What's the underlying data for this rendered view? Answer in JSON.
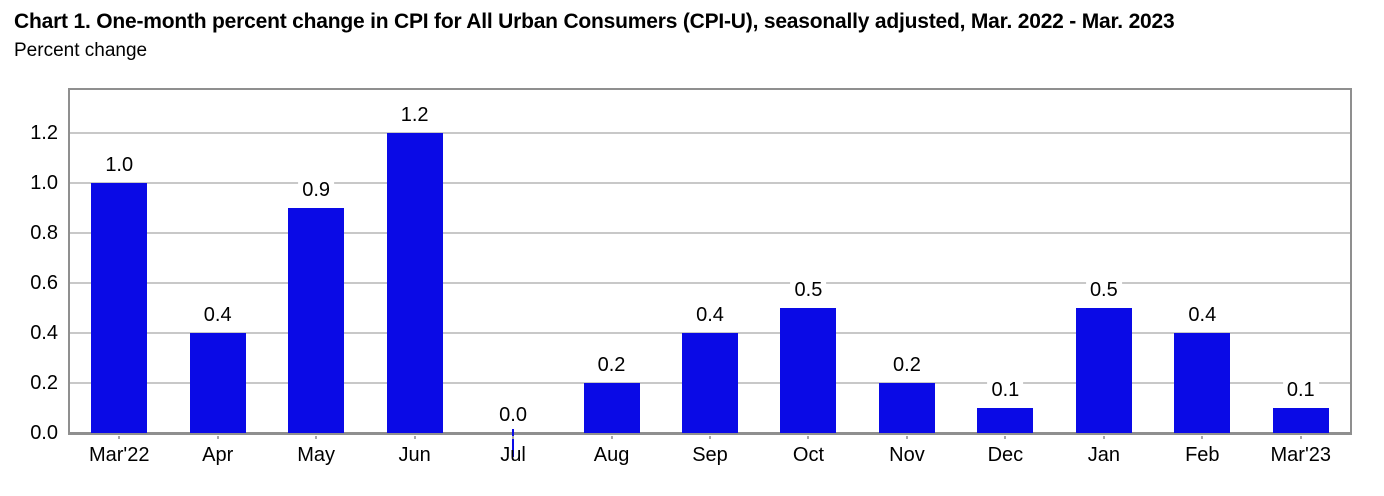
{
  "header": {
    "title": "Chart 1. One-month percent change in CPI for All Urban Consumers (CPI-U), seasonally adjusted, Mar. 2022 - Mar. 2023",
    "subtitle": "Percent change"
  },
  "chart_data": {
    "type": "bar",
    "title": "Chart 1. One-month percent change in CPI for All Urban Consumers (CPI-U), seasonally adjusted, Mar. 2022 - Mar. 2023",
    "ylabel": "Percent change",
    "xlabel": "",
    "categories": [
      "Mar'22",
      "Apr",
      "May",
      "Jun",
      "Jul",
      "Aug",
      "Sep",
      "Oct",
      "Nov",
      "Dec",
      "Jan",
      "Feb",
      "Mar'23"
    ],
    "values": [
      1.0,
      0.4,
      0.9,
      1.2,
      0.0,
      0.2,
      0.4,
      0.5,
      0.2,
      0.1,
      0.5,
      0.4,
      0.1
    ],
    "value_labels": [
      "1.0",
      "0.4",
      "0.9",
      "1.2",
      "0.0",
      "0.2",
      "0.4",
      "0.5",
      "0.2",
      "0.1",
      "0.5",
      "0.4",
      "0.1"
    ],
    "y_ticks": [
      0.0,
      0.2,
      0.4,
      0.6,
      0.8,
      1.0,
      1.2
    ],
    "y_tick_labels": [
      "0.0",
      "0.2",
      "0.4",
      "0.6",
      "0.8",
      "1.0",
      "1.2"
    ],
    "ylim": [
      0,
      1.37
    ],
    "grid": true,
    "legend": false,
    "bar_color": "#0a0ae6",
    "grid_color": "#c8c8c8",
    "border_color": "#8f8f8f",
    "tick_mark_color": "#a8a8a8",
    "text_color": "#000000"
  }
}
